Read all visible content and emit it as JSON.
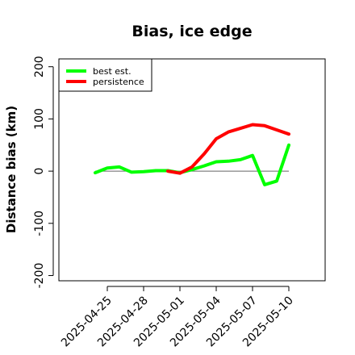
{
  "chart_data": {
    "type": "line",
    "title": "Bias, ice edge",
    "xlabel": "",
    "ylabel": "Distance bias (km)",
    "ylim": [
      -210,
      215
    ],
    "yticks": [
      -200,
      -100,
      0,
      100,
      200
    ],
    "xlim": [
      "2025-04-21",
      "2025-05-13"
    ],
    "xticks": [
      "2025-04-25",
      "2025-04-28",
      "2025-05-01",
      "2025-05-04",
      "2025-05-07",
      "2025-05-10"
    ],
    "reference_line": 0,
    "legend_position": "top-left",
    "series": [
      {
        "name": "best est.",
        "color": "#00ff00",
        "x": [
          "2025-04-24",
          "2025-04-25",
          "2025-04-26",
          "2025-04-27",
          "2025-04-28",
          "2025-04-29",
          "2025-04-30",
          "2025-05-01",
          "2025-05-02",
          "2025-05-03",
          "2025-05-04",
          "2025-05-05",
          "2025-05-06",
          "2025-05-07",
          "2025-05-08",
          "2025-05-09",
          "2025-05-10"
        ],
        "y": [
          -3,
          6,
          8,
          -2,
          -1,
          1,
          1,
          -3,
          3,
          10,
          18,
          19,
          22,
          30,
          -26,
          -19,
          50
        ]
      },
      {
        "name": "persistence",
        "color": "#ff0000",
        "x": [
          "2025-04-30",
          "2025-05-01",
          "2025-05-02",
          "2025-05-03",
          "2025-05-04",
          "2025-05-05",
          "2025-05-06",
          "2025-05-07",
          "2025-05-08",
          "2025-05-09",
          "2025-05-10"
        ],
        "y": [
          0,
          -4,
          8,
          33,
          62,
          75,
          82,
          89,
          87,
          79,
          71
        ]
      }
    ]
  }
}
